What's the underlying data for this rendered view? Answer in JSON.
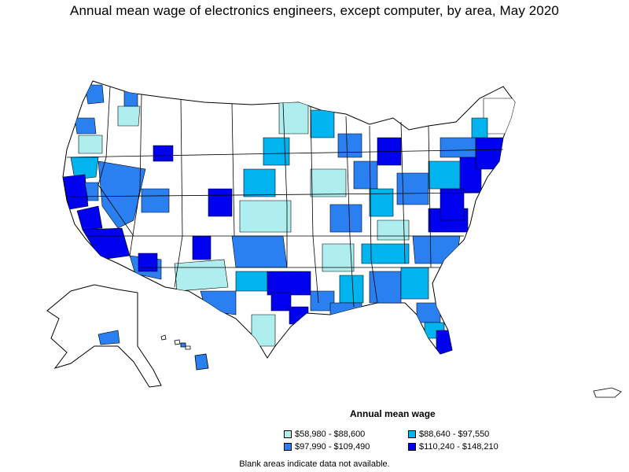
{
  "title": "Annual mean wage of electronics engineers, except computer, by area, May 2020",
  "legend": {
    "title": "Annual mean wage",
    "items": [
      {
        "label": "$58,980 - $88,600",
        "color": "#aeeeee"
      },
      {
        "label": "$88,640 - $97,550",
        "color": "#00b4f0"
      },
      {
        "label": "$97,990 - $109,490",
        "color": "#2a80f0"
      },
      {
        "label": "$110,240 - $148,210",
        "color": "#0000f0"
      }
    ]
  },
  "note": "Blank areas indicate data not available.",
  "colors": {
    "no_data": "#ffffff",
    "border": "#000000"
  }
}
